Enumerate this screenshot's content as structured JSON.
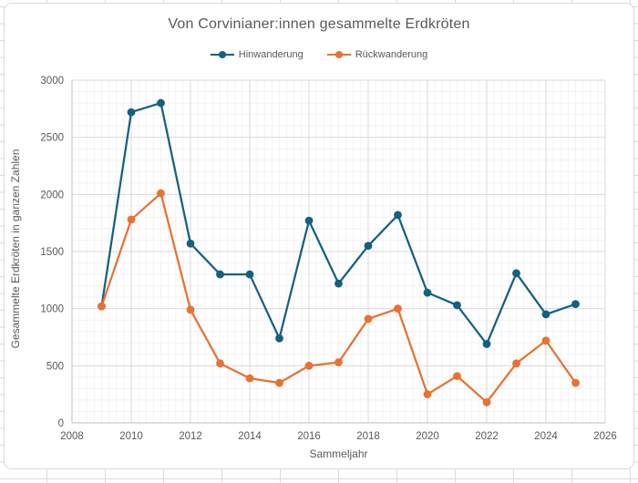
{
  "chart": {
    "title": "Von Corvinianer:innen gesammelte Erdkröten",
    "x_axis_title": "Sammeljahr",
    "y_axis_title": "Gesammelte Erdkröten in ganzen Zahlen",
    "colors": {
      "series_blue": "#156082",
      "series_orange": "#E97132",
      "text": "#595959",
      "major_grid": "#d9d9d9",
      "minor_grid": "#f2f2f2",
      "axis_line": "#bfbfbf"
    }
  },
  "chart_data": {
    "type": "line",
    "title": "Von Corvinianer:innen gesammelte Erdkröten",
    "xlabel": "Sammeljahr",
    "ylabel": "Gesammelte Erdkröten in ganzen Zahlen",
    "x": [
      2009,
      2010,
      2011,
      2012,
      2013,
      2014,
      2015,
      2016,
      2017,
      2018,
      2019,
      2020,
      2021,
      2022,
      2023,
      2024,
      2025
    ],
    "series": [
      {
        "name": "Hinwanderung",
        "color": "#156082",
        "values": [
          1020,
          2720,
          2800,
          1570,
          1300,
          1300,
          740,
          1770,
          1220,
          1550,
          1820,
          1140,
          1030,
          690,
          1310,
          950,
          1040
        ]
      },
      {
        "name": "Rückwanderung",
        "color": "#E97132",
        "values": [
          1020,
          1780,
          2010,
          990,
          520,
          390,
          350,
          500,
          530,
          910,
          1000,
          250,
          410,
          180,
          520,
          720,
          350
        ]
      }
    ],
    "xlim": [
      2008,
      2026
    ],
    "ylim": [
      0,
      3000
    ],
    "x_ticks": [
      2008,
      2010,
      2012,
      2014,
      2016,
      2018,
      2020,
      2022,
      2024,
      2026
    ],
    "y_ticks": [
      0,
      500,
      1000,
      1500,
      2000,
      2500,
      3000
    ],
    "x_minor_step": 0.25,
    "y_minor_step": 100,
    "grid": {
      "major": true,
      "minor": true
    },
    "legend_position": "top",
    "legend": [
      "Hinwanderung",
      "Rückwanderung"
    ]
  }
}
